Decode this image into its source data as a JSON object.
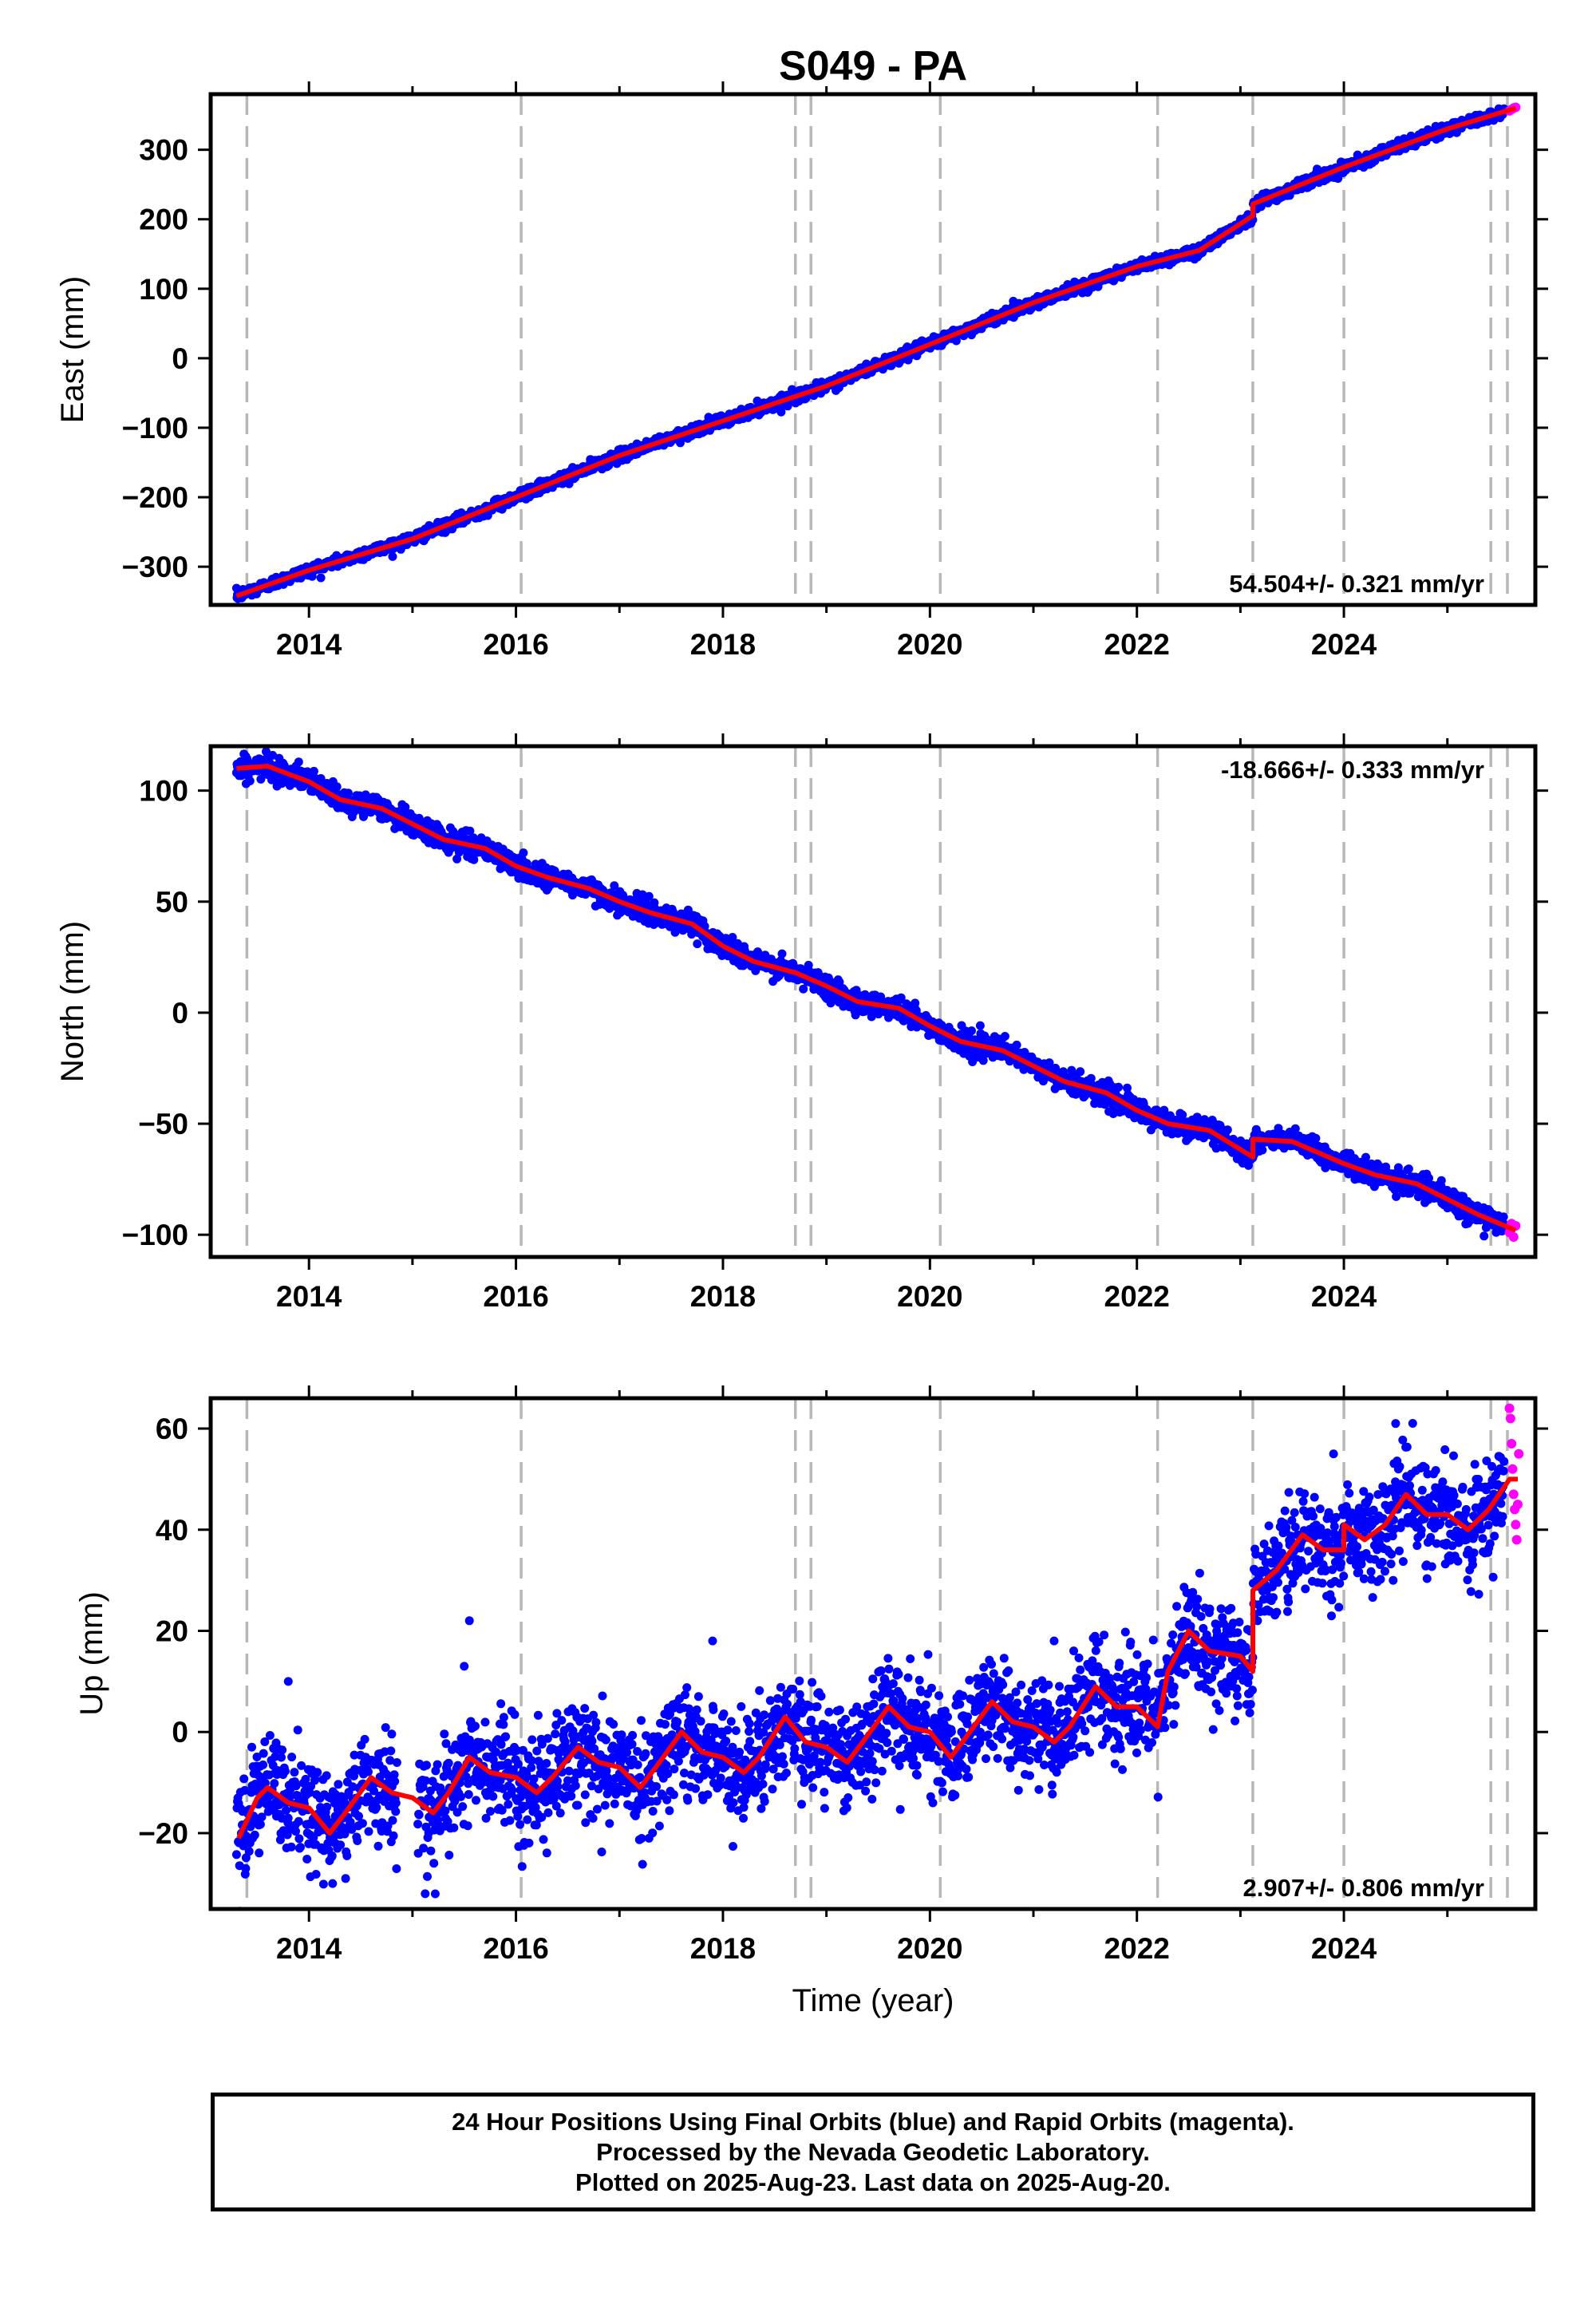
{
  "chart_data": [
    {
      "type": "scatter",
      "title": "S049 - PA",
      "ylabel": "East (mm)",
      "xlabel": "",
      "xlim": [
        2013.05,
        2025.85
      ],
      "ylim": [
        -355,
        380
      ],
      "xticks": [
        2014,
        2016,
        2018,
        2020,
        2022,
        2024
      ],
      "yticks": [
        -300,
        -200,
        -100,
        0,
        100,
        200,
        300
      ],
      "ytick_labels": [
        "−300",
        "−200",
        "−100",
        "0",
        "100",
        "200",
        "300"
      ],
      "rate_label": "54.504+/- 0.321 mm/yr",
      "rate_label_position": "bottom-right",
      "equipment_changes": [
        2013.4,
        2016.05,
        2018.7,
        2018.85,
        2020.1,
        2022.2,
        2023.12,
        2024.0,
        2025.42,
        2025.58
      ],
      "series": [
        {
          "name": "Final Orbits (blue)",
          "color": "#0000ff",
          "trend": [
            [
              2013.3,
              -342
            ],
            [
              2014.0,
              -305
            ],
            [
              2015.0,
              -260
            ],
            [
              2016.0,
              -200
            ],
            [
              2017.0,
              -140
            ],
            [
              2018.0,
              -90
            ],
            [
              2019.0,
              -40
            ],
            [
              2020.0,
              20
            ],
            [
              2021.0,
              80
            ],
            [
              2022.0,
              132
            ],
            [
              2023.0,
              200
            ],
            [
              2024.0,
              275
            ],
            [
              2025.0,
              330
            ],
            [
              2025.55,
              355
            ]
          ],
          "scatter_mm": 4
        },
        {
          "name": "Rapid Orbits (magenta)",
          "color": "#ff00ff",
          "points": [
            [
              2025.6,
              356
            ],
            [
              2025.62,
              358
            ],
            [
              2025.64,
              360
            ],
            [
              2025.66,
              361
            ]
          ]
        },
        {
          "name": "model",
          "color": "#ff0000",
          "line": [
            [
              2013.3,
              -342
            ],
            [
              2014.0,
              -305
            ],
            [
              2015.0,
              -260
            ],
            [
              2016.0,
              -200
            ],
            [
              2017.0,
              -140
            ],
            [
              2018.0,
              -90
            ],
            [
              2019.0,
              -40
            ],
            [
              2020.0,
              20
            ],
            [
              2021.0,
              80
            ],
            [
              2022.0,
              132
            ],
            [
              2022.6,
              155
            ],
            [
              2023.12,
              205
            ],
            [
              2023.12,
              222
            ],
            [
              2024.0,
              275
            ],
            [
              2025.0,
              330
            ],
            [
              2025.66,
              360
            ]
          ]
        }
      ]
    },
    {
      "type": "scatter",
      "title": "",
      "ylabel": "North (mm)",
      "xlabel": "",
      "xlim": [
        2013.05,
        2025.85
      ],
      "ylim": [
        -110,
        120
      ],
      "xticks": [
        2014,
        2016,
        2018,
        2020,
        2022,
        2024
      ],
      "yticks": [
        -100,
        -50,
        0,
        50,
        100
      ],
      "ytick_labels": [
        "−100",
        "−50",
        "0",
        "50",
        "100"
      ],
      "rate_label": "-18.666+/- 0.333 mm/yr",
      "rate_label_position": "top-right",
      "equipment_changes": [
        2013.4,
        2016.05,
        2018.7,
        2018.85,
        2020.1,
        2022.2,
        2023.12,
        2024.0,
        2025.42,
        2025.58
      ],
      "series": [
        {
          "name": "Final Orbits (blue)",
          "color": "#0000ff",
          "trend": [
            [
              2013.3,
              112
            ],
            [
              2014.0,
              103
            ],
            [
              2015.0,
              84
            ],
            [
              2016.0,
              63
            ],
            [
              2017.0,
              48
            ],
            [
              2018.0,
              28
            ],
            [
              2019.0,
              12
            ],
            [
              2020.0,
              -10
            ],
            [
              2021.0,
              -27
            ],
            [
              2022.0,
              -46
            ],
            [
              2023.0,
              -57
            ],
            [
              2024.0,
              -70
            ],
            [
              2025.0,
              -85
            ],
            [
              2025.55,
              -97
            ]
          ],
          "scatter_mm": 2.5
        },
        {
          "name": "Rapid Orbits (magenta)",
          "color": "#ff00ff",
          "points": [
            [
              2025.6,
              -99
            ],
            [
              2025.62,
              -95
            ],
            [
              2025.64,
              -101
            ],
            [
              2025.66,
              -96
            ]
          ]
        },
        {
          "name": "model",
          "color": "#ff0000",
          "line": [
            [
              2013.3,
              110
            ],
            [
              2013.6,
              111
            ],
            [
              2014.0,
              104
            ],
            [
              2014.3,
              96
            ],
            [
              2014.7,
              92
            ],
            [
              2015.0,
              85
            ],
            [
              2015.3,
              78
            ],
            [
              2015.7,
              74
            ],
            [
              2016.0,
              66
            ],
            [
              2016.3,
              61
            ],
            [
              2016.7,
              56
            ],
            [
              2017.0,
              50
            ],
            [
              2017.3,
              45
            ],
            [
              2017.7,
              40
            ],
            [
              2018.0,
              30
            ],
            [
              2018.3,
              23
            ],
            [
              2018.7,
              18
            ],
            [
              2019.0,
              12
            ],
            [
              2019.3,
              5
            ],
            [
              2019.7,
              2
            ],
            [
              2020.0,
              -6
            ],
            [
              2020.3,
              -13
            ],
            [
              2020.7,
              -17
            ],
            [
              2021.0,
              -24
            ],
            [
              2021.3,
              -31
            ],
            [
              2021.7,
              -36
            ],
            [
              2022.0,
              -44
            ],
            [
              2022.3,
              -50
            ],
            [
              2022.7,
              -53
            ],
            [
              2023.12,
              -65
            ],
            [
              2023.12,
              -57
            ],
            [
              2023.5,
              -58
            ],
            [
              2024.0,
              -68
            ],
            [
              2024.3,
              -73
            ],
            [
              2024.7,
              -77
            ],
            [
              2025.0,
              -84
            ],
            [
              2025.3,
              -91
            ],
            [
              2025.66,
              -98
            ]
          ]
        }
      ]
    },
    {
      "type": "scatter",
      "title": "",
      "ylabel": "Up (mm)",
      "xlabel": "Time (year)",
      "xlim": [
        2013.05,
        2025.85
      ],
      "ylim": [
        -35,
        66
      ],
      "xticks": [
        2014,
        2016,
        2018,
        2020,
        2022,
        2024
      ],
      "yticks": [
        -20,
        0,
        20,
        40,
        60
      ],
      "ytick_labels": [
        "−20",
        "0",
        "20",
        "40",
        "60"
      ],
      "rate_label": "2.907+/- 0.806 mm/yr",
      "rate_label_position": "bottom-right",
      "equipment_changes": [
        2013.4,
        2016.05,
        2018.7,
        2018.85,
        2020.1,
        2022.2,
        2023.12,
        2024.0,
        2025.42,
        2025.58
      ],
      "series": [
        {
          "name": "Final Orbits (blue)",
          "color": "#0000ff",
          "trend": [
            [
              2013.3,
              -16
            ],
            [
              2014.0,
              -15
            ],
            [
              2015.0,
              -11
            ],
            [
              2016.0,
              -8
            ],
            [
              2017.0,
              -6
            ],
            [
              2018.0,
              -3
            ],
            [
              2019.0,
              -1
            ],
            [
              2020.0,
              1
            ],
            [
              2021.0,
              3
            ],
            [
              2022.0,
              5
            ],
            [
              2022.2,
              7
            ],
            [
              2023.0,
              17
            ],
            [
              2023.5,
              34
            ],
            [
              2024.0,
              38
            ],
            [
              2025.0,
              42
            ],
            [
              2025.55,
              47
            ]
          ],
          "scatter_mm": 5
        },
        {
          "name": "Rapid Orbits (magenta)",
          "color": "#ff00ff",
          "points": [
            [
              2025.6,
              64
            ],
            [
              2025.61,
              62
            ],
            [
              2025.62,
              57
            ],
            [
              2025.63,
              52
            ],
            [
              2025.64,
              47
            ],
            [
              2025.65,
              44
            ],
            [
              2025.66,
              41
            ],
            [
              2025.67,
              38
            ],
            [
              2025.68,
              45
            ],
            [
              2025.69,
              55
            ]
          ]
        },
        {
          "name": "model",
          "color": "#ff0000",
          "line": [
            [
              2013.32,
              -21
            ],
            [
              2013.5,
              -13
            ],
            [
              2013.6,
              -11
            ],
            [
              2013.8,
              -14
            ],
            [
              2014.0,
              -15
            ],
            [
              2014.2,
              -20
            ],
            [
              2014.35,
              -16
            ],
            [
              2014.6,
              -9
            ],
            [
              2014.8,
              -12
            ],
            [
              2015.0,
              -13
            ],
            [
              2015.2,
              -16
            ],
            [
              2015.35,
              -12
            ],
            [
              2015.55,
              -5
            ],
            [
              2015.75,
              -8
            ],
            [
              2016.0,
              -9
            ],
            [
              2016.2,
              -12
            ],
            [
              2016.35,
              -9
            ],
            [
              2016.6,
              -3
            ],
            [
              2016.8,
              -6
            ],
            [
              2017.0,
              -7
            ],
            [
              2017.2,
              -11
            ],
            [
              2017.35,
              -7
            ],
            [
              2017.6,
              0
            ],
            [
              2017.8,
              -4
            ],
            [
              2018.0,
              -5
            ],
            [
              2018.2,
              -8
            ],
            [
              2018.35,
              -5
            ],
            [
              2018.6,
              3
            ],
            [
              2018.8,
              -2
            ],
            [
              2019.0,
              -3
            ],
            [
              2019.2,
              -6
            ],
            [
              2019.35,
              -2
            ],
            [
              2019.6,
              5
            ],
            [
              2019.8,
              1
            ],
            [
              2020.0,
              0
            ],
            [
              2020.2,
              -5
            ],
            [
              2020.35,
              -1
            ],
            [
              2020.6,
              6
            ],
            [
              2020.8,
              2
            ],
            [
              2021.0,
              1
            ],
            [
              2021.2,
              -2
            ],
            [
              2021.35,
              1
            ],
            [
              2021.6,
              9
            ],
            [
              2021.8,
              5
            ],
            [
              2022.0,
              5
            ],
            [
              2022.2,
              1
            ],
            [
              2022.3,
              12
            ],
            [
              2022.5,
              20
            ],
            [
              2022.7,
              16
            ],
            [
              2023.0,
              15
            ],
            [
              2023.12,
              12
            ],
            [
              2023.12,
              28
            ],
            [
              2023.35,
              32
            ],
            [
              2023.6,
              39
            ],
            [
              2023.8,
              36
            ],
            [
              2024.0,
              36
            ],
            [
              2024.0,
              41
            ],
            [
              2024.2,
              38
            ],
            [
              2024.4,
              41
            ],
            [
              2024.6,
              47
            ],
            [
              2024.8,
              43
            ],
            [
              2025.0,
              43
            ],
            [
              2025.2,
              40
            ],
            [
              2025.4,
              44
            ],
            [
              2025.6,
              50
            ],
            [
              2025.68,
              50
            ]
          ]
        }
      ]
    }
  ],
  "footer": {
    "line1": "24 Hour Positions Using Final Orbits (blue) and Rapid Orbits (magenta).",
    "line2": "Processed by the Nevada Geodetic Laboratory.",
    "line3": "Plotted on 2025-Aug-23. Last data on 2025-Aug-20."
  }
}
